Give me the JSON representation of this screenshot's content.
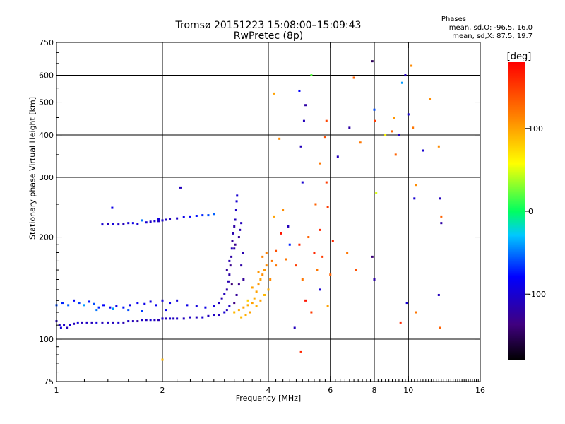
{
  "chart_data": {
    "type": "scatter",
    "title": "Tromsø 20151223 15:08:00–15:09:43",
    "subtitle": "RwPretec (8p)",
    "xlabel": "Frequency [MHz]",
    "ylabel": "Stationary phase Virtual Height [km]",
    "x_scale": "log",
    "y_scale": "log",
    "xlim": [
      1,
      16
    ],
    "ylim": [
      75,
      750
    ],
    "xticks": [
      1,
      2,
      4,
      6,
      8,
      10,
      16
    ],
    "xtick_labels": [
      "1",
      "2",
      "4",
      "6",
      "8",
      "10",
      "16"
    ],
    "yticks": [
      75,
      100,
      200,
      300,
      400,
      500,
      600,
      750
    ],
    "ytick_labels": [
      "75",
      "100",
      "200",
      "300",
      "400",
      "500",
      "600",
      "750"
    ],
    "x_gridlines": [
      2,
      4,
      6,
      8,
      10
    ],
    "y_gridlines": [
      100,
      200,
      300,
      400,
      500,
      600
    ],
    "grid": true,
    "colorbar": {
      "label": "[deg]",
      "range": [
        -180,
        180
      ],
      "ticks": [
        100,
        0,
        -100
      ],
      "tick_labels": [
        "100",
        "0",
        "-100"
      ]
    },
    "phase_stats": {
      "heading": "Phases",
      "line_o": "mean, sd,O:  -96.5, 16.0",
      "line_x": "mean, sd,X:  87.5, 19.7"
    },
    "series": [
      {
        "points": [
          [
            1.0,
            113,
            -110
          ],
          [
            1.02,
            110,
            -105
          ],
          [
            1.03,
            108,
            -95
          ],
          [
            1.05,
            110,
            -105
          ],
          [
            1.07,
            108,
            -110
          ],
          [
            1.09,
            110,
            -100
          ],
          [
            1.12,
            111,
            -110
          ],
          [
            1.15,
            112,
            -95
          ],
          [
            1.18,
            112,
            -110
          ],
          [
            1.22,
            112,
            -105
          ],
          [
            1.26,
            112,
            -110
          ],
          [
            1.3,
            112,
            -95
          ],
          [
            1.35,
            112,
            -110
          ],
          [
            1.4,
            112,
            -105
          ],
          [
            1.45,
            112,
            -110
          ],
          [
            1.5,
            112,
            -100
          ],
          [
            1.55,
            112,
            -115
          ],
          [
            1.6,
            113,
            -105
          ],
          [
            1.65,
            113,
            -110
          ],
          [
            1.7,
            113,
            -120
          ],
          [
            1.75,
            114,
            -105
          ],
          [
            1.8,
            114,
            -110
          ],
          [
            1.85,
            114,
            -100
          ],
          [
            1.9,
            114,
            -110
          ],
          [
            1.95,
            114,
            -115
          ],
          [
            2.0,
            115,
            -105
          ],
          [
            2.05,
            115,
            -110
          ],
          [
            2.1,
            115,
            -100
          ],
          [
            2.15,
            115,
            -110
          ],
          [
            2.2,
            115,
            -105
          ],
          [
            2.3,
            115,
            -110
          ],
          [
            2.4,
            116,
            -105
          ],
          [
            2.5,
            116,
            -110
          ],
          [
            2.6,
            116,
            -100
          ],
          [
            2.7,
            117,
            -110
          ],
          [
            2.8,
            118,
            -105
          ],
          [
            2.9,
            118,
            -110
          ],
          [
            3.0,
            120,
            -100
          ],
          [
            3.05,
            122,
            -110
          ],
          [
            3.1,
            125,
            -105
          ]
        ]
      },
      {
        "points": [
          [
            1.0,
            126,
            -60
          ],
          [
            1.04,
            128,
            -70
          ],
          [
            1.08,
            126,
            -55
          ],
          [
            1.12,
            130,
            -80
          ],
          [
            1.16,
            128,
            -65
          ],
          [
            1.2,
            126,
            -40
          ],
          [
            1.24,
            129,
            -75
          ],
          [
            1.28,
            127,
            -60
          ],
          [
            1.32,
            124,
            -70
          ],
          [
            1.36,
            126,
            -80
          ],
          [
            1.42,
            124,
            -85
          ],
          [
            1.48,
            125,
            -90
          ],
          [
            1.55,
            124,
            -75
          ],
          [
            1.62,
            126,
            -90
          ],
          [
            1.7,
            128,
            -85
          ],
          [
            1.78,
            127,
            -90
          ],
          [
            1.85,
            129,
            -95
          ],
          [
            1.92,
            126,
            -85
          ],
          [
            2.0,
            130,
            -95
          ],
          [
            2.1,
            128,
            -90
          ],
          [
            2.2,
            130,
            -95
          ],
          [
            2.35,
            126,
            -90
          ],
          [
            2.5,
            125,
            -95
          ],
          [
            2.65,
            124,
            -90
          ],
          [
            2.8,
            125,
            -95
          ],
          [
            1.3,
            122,
            -50
          ],
          [
            1.45,
            123,
            -40
          ],
          [
            1.6,
            122,
            -60
          ],
          [
            1.75,
            121,
            -65
          ],
          [
            2.05,
            122,
            -85
          ]
        ]
      },
      {
        "points": [
          [
            1.35,
            218,
            -100
          ],
          [
            1.4,
            219,
            -110
          ],
          [
            1.45,
            219,
            -95
          ],
          [
            1.5,
            218,
            -105
          ],
          [
            1.55,
            219,
            -110
          ],
          [
            1.6,
            220,
            -100
          ],
          [
            1.65,
            220,
            -90
          ],
          [
            1.7,
            219,
            -100
          ],
          [
            1.8,
            221,
            -100
          ],
          [
            1.85,
            222,
            -105
          ],
          [
            1.9,
            223,
            -100
          ],
          [
            1.95,
            223,
            -105
          ],
          [
            2.0,
            224,
            -100
          ],
          [
            2.05,
            225,
            -105
          ],
          [
            2.1,
            226,
            -110
          ],
          [
            2.2,
            227,
            -105
          ],
          [
            2.3,
            229,
            -90
          ],
          [
            2.4,
            230,
            -80
          ],
          [
            2.5,
            231,
            -75
          ],
          [
            2.6,
            232,
            -70
          ],
          [
            2.7,
            232,
            -60
          ],
          [
            2.8,
            234,
            -55
          ],
          [
            1.44,
            244,
            -90
          ],
          [
            1.75,
            224,
            -50
          ],
          [
            1.95,
            226,
            -95
          ],
          [
            2.25,
            280,
            -110
          ]
        ]
      },
      {
        "points": [
          [
            2.9,
            128,
            -110
          ],
          [
            2.95,
            132,
            -115
          ],
          [
            3.0,
            136,
            -110
          ],
          [
            3.05,
            140,
            -120
          ],
          [
            3.08,
            148,
            -115
          ],
          [
            3.1,
            155,
            -120
          ],
          [
            3.12,
            165,
            -130
          ],
          [
            3.14,
            175,
            -120
          ],
          [
            3.15,
            185,
            -110
          ],
          [
            3.16,
            195,
            -125
          ],
          [
            3.18,
            205,
            -115
          ],
          [
            3.2,
            215,
            -120
          ],
          [
            3.22,
            225,
            -110
          ],
          [
            3.24,
            240,
            -105
          ],
          [
            3.25,
            255,
            -100
          ],
          [
            3.26,
            265,
            -100
          ],
          [
            3.3,
            200,
            -125
          ],
          [
            3.32,
            210,
            -115
          ],
          [
            3.35,
            220,
            -110
          ],
          [
            3.3,
            145,
            -130
          ],
          [
            3.25,
            135,
            -125
          ],
          [
            3.2,
            128,
            -135
          ],
          [
            3.35,
            165,
            -120
          ],
          [
            3.38,
            180,
            -115
          ],
          [
            3.4,
            150,
            -125
          ],
          [
            3.2,
            185,
            -120
          ],
          [
            3.1,
            170,
            -115
          ],
          [
            3.05,
            160,
            -125
          ],
          [
            3.15,
            145,
            -140
          ],
          [
            3.22,
            190,
            -130
          ]
        ]
      },
      {
        "points": [
          [
            3.2,
            120,
            90
          ],
          [
            3.3,
            122,
            95
          ],
          [
            3.4,
            124,
            100
          ],
          [
            3.5,
            126,
            95
          ],
          [
            3.6,
            128,
            100
          ],
          [
            3.65,
            132,
            95
          ],
          [
            3.7,
            138,
            100
          ],
          [
            3.75,
            145,
            105
          ],
          [
            3.8,
            150,
            100
          ],
          [
            3.85,
            155,
            110
          ],
          [
            3.9,
            160,
            105
          ],
          [
            3.95,
            165,
            110
          ],
          [
            3.7,
            125,
            95
          ],
          [
            3.8,
            130,
            100
          ],
          [
            3.9,
            135,
            90
          ],
          [
            4.0,
            140,
            95
          ],
          [
            4.05,
            150,
            110
          ],
          [
            3.5,
            130,
            80
          ],
          [
            3.6,
            142,
            100
          ],
          [
            3.75,
            158,
            105
          ],
          [
            3.35,
            116,
            90
          ],
          [
            3.45,
            118,
            95
          ],
          [
            3.55,
            120,
            100
          ],
          [
            3.85,
            175,
            115
          ],
          [
            4.1,
            170,
            120
          ],
          [
            3.95,
            180,
            115
          ],
          [
            4.2,
            165,
            120
          ]
        ]
      },
      {
        "points": [
          [
            4.15,
            530,
            100
          ],
          [
            4.3,
            390,
            110
          ],
          [
            4.9,
            540,
            -80
          ],
          [
            4.95,
            370,
            -110
          ],
          [
            5.0,
            290,
            -100
          ],
          [
            5.05,
            440,
            -110
          ],
          [
            5.1,
            490,
            -120
          ],
          [
            5.3,
            600,
            20
          ],
          [
            5.45,
            250,
            130
          ],
          [
            5.6,
            210,
            160
          ],
          [
            5.6,
            330,
            120
          ],
          [
            5.8,
            395,
            140
          ],
          [
            5.85,
            440,
            145
          ],
          [
            5.85,
            290,
            150
          ],
          [
            5.9,
            245,
            150
          ],
          [
            6.3,
            345,
            -110
          ],
          [
            6.8,
            420,
            -120
          ],
          [
            7.0,
            590,
            130
          ],
          [
            7.3,
            380,
            120
          ],
          [
            7.9,
            660,
            -150
          ],
          [
            8.0,
            475,
            -60
          ],
          [
            8.1,
            270,
            50
          ],
          [
            8.05,
            440,
            150
          ],
          [
            8.6,
            400,
            60
          ],
          [
            9.0,
            410,
            130
          ],
          [
            9.1,
            450,
            105
          ],
          [
            9.2,
            350,
            130
          ],
          [
            9.4,
            400,
            -110
          ],
          [
            9.6,
            570,
            -40
          ],
          [
            9.8,
            600,
            -110
          ],
          [
            10.0,
            460,
            -100
          ],
          [
            10.2,
            640,
            110
          ],
          [
            10.3,
            420,
            120
          ],
          [
            10.4,
            260,
            -100
          ],
          [
            10.5,
            285,
            110
          ],
          [
            11.0,
            360,
            -100
          ],
          [
            11.5,
            510,
            110
          ],
          [
            12.2,
            370,
            110
          ],
          [
            12.3,
            260,
            -110
          ],
          [
            12.4,
            230,
            130
          ],
          [
            12.4,
            220,
            -120
          ]
        ]
      },
      {
        "points": [
          [
            4.2,
            182,
            140
          ],
          [
            4.35,
            205,
            170
          ],
          [
            4.5,
            172,
            120
          ],
          [
            4.6,
            190,
            -70
          ],
          [
            4.8,
            165,
            150
          ],
          [
            4.9,
            190,
            160
          ],
          [
            5.0,
            150,
            120
          ],
          [
            5.1,
            130,
            170
          ],
          [
            5.2,
            200,
            130
          ],
          [
            5.4,
            180,
            160
          ],
          [
            5.5,
            160,
            120
          ],
          [
            5.6,
            140,
            -100
          ],
          [
            5.7,
            175,
            150
          ],
          [
            5.9,
            125,
            100
          ],
          [
            6.0,
            155,
            130
          ],
          [
            6.1,
            195,
            160
          ],
          [
            5.3,
            120,
            150
          ],
          [
            4.75,
            108,
            -110
          ],
          [
            4.95,
            92,
            160
          ],
          [
            2.0,
            87,
            90
          ],
          [
            7.9,
            175,
            -140
          ],
          [
            8.0,
            150,
            -120
          ],
          [
            9.5,
            112,
            160
          ],
          [
            9.9,
            128,
            -100
          ],
          [
            12.2,
            135,
            -110
          ],
          [
            12.3,
            108,
            130
          ],
          [
            10.5,
            120,
            120
          ],
          [
            7.1,
            160,
            140
          ],
          [
            6.7,
            180,
            120
          ],
          [
            4.15,
            230,
            100
          ],
          [
            4.4,
            240,
            110
          ],
          [
            4.55,
            215,
            -110
          ]
        ]
      }
    ]
  }
}
